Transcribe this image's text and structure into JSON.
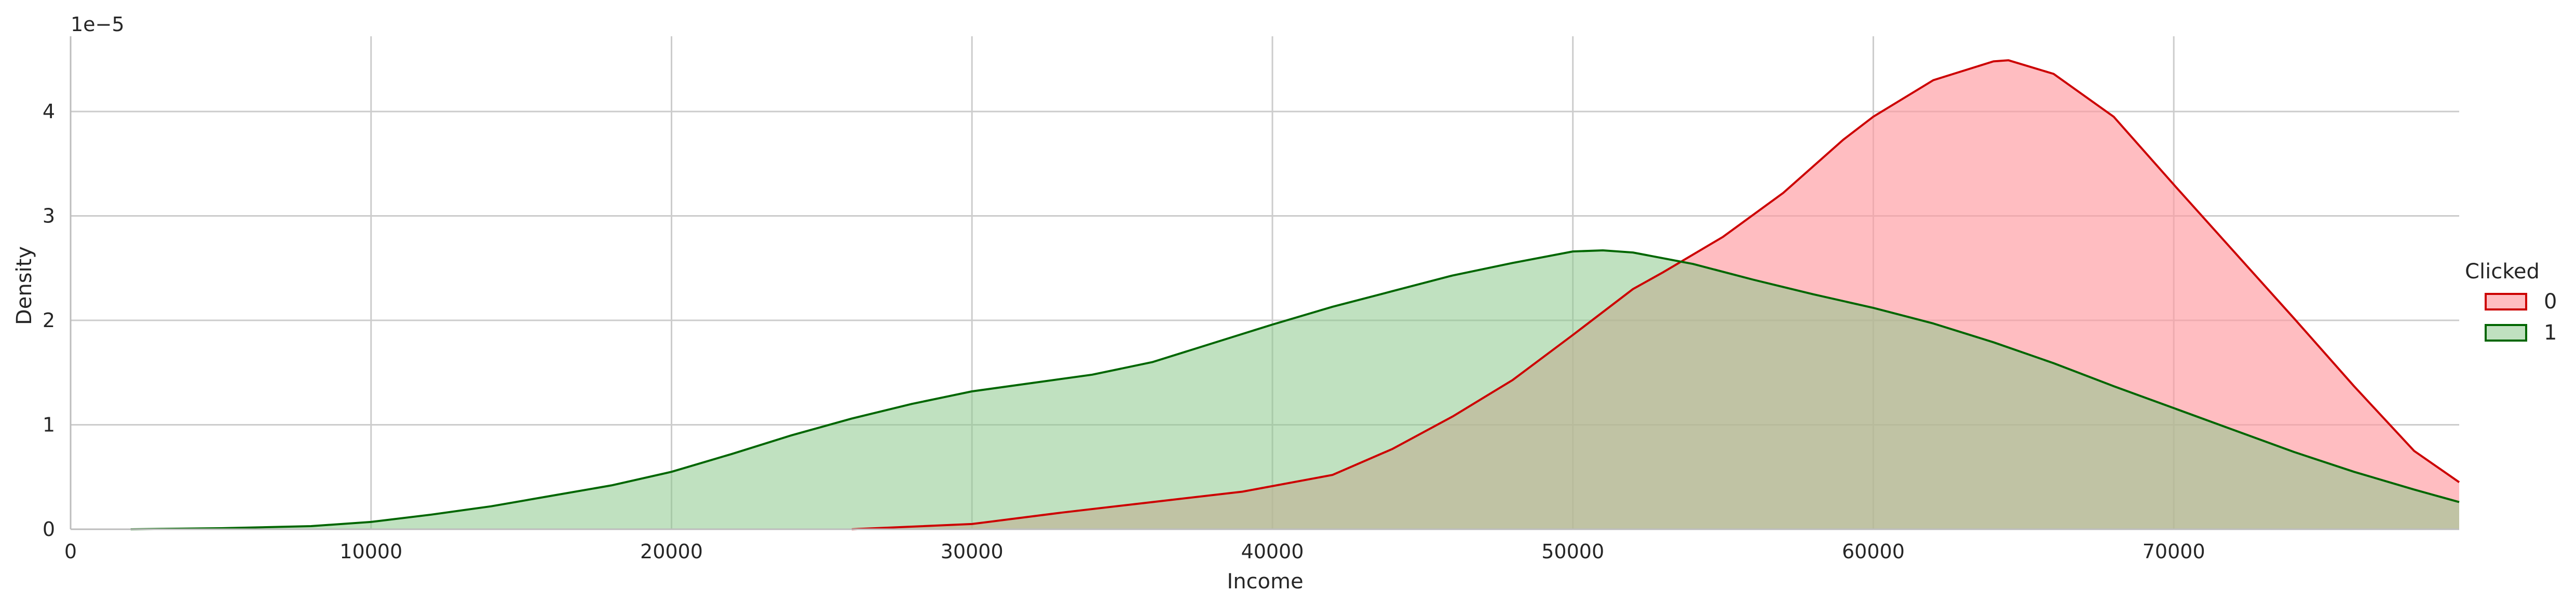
{
  "chart_data": {
    "type": "area",
    "xlabel": "Income",
    "ylabel": "Density",
    "y_scale_label": "1e−5",
    "x_ticks": [
      0,
      10000,
      20000,
      30000,
      40000,
      50000,
      60000,
      70000
    ],
    "x_tick_labels": [
      "0",
      "10000",
      "20000",
      "30000",
      "40000",
      "50000",
      "60000",
      "70000"
    ],
    "y_ticks": [
      0,
      1,
      2,
      3,
      4
    ],
    "y_tick_labels": [
      "0",
      "1",
      "2",
      "3",
      "4"
    ],
    "xlim": [
      0,
      79500
    ],
    "ylim": [
      0,
      4.72
    ],
    "grid": true,
    "legend": {
      "title": "Clicked",
      "placement": "right"
    },
    "series": [
      {
        "name": "0",
        "line_color": "#cc0000",
        "fill_color": "#ff9a9f",
        "fill_opacity": 0.65,
        "points": [
          [
            26000,
            0
          ],
          [
            30000,
            0.05
          ],
          [
            33000,
            0.16
          ],
          [
            36000,
            0.26
          ],
          [
            39000,
            0.36
          ],
          [
            42000,
            0.52
          ],
          [
            44000,
            0.77
          ],
          [
            46000,
            1.08
          ],
          [
            48000,
            1.43
          ],
          [
            50000,
            1.86
          ],
          [
            52000,
            2.3
          ],
          [
            53000,
            2.46
          ],
          [
            55000,
            2.8
          ],
          [
            57000,
            3.22
          ],
          [
            59000,
            3.73
          ],
          [
            60000,
            3.95
          ],
          [
            62000,
            4.3
          ],
          [
            64000,
            4.48
          ],
          [
            64500,
            4.49
          ],
          [
            66000,
            4.36
          ],
          [
            68000,
            3.95
          ],
          [
            70000,
            3.3
          ],
          [
            72000,
            2.66
          ],
          [
            74000,
            2.02
          ],
          [
            76000,
            1.37
          ],
          [
            78000,
            0.75
          ],
          [
            79500,
            0.45
          ]
        ]
      },
      {
        "name": "1",
        "line_color": "#006600",
        "fill_color": "#8cc98c",
        "fill_opacity": 0.55,
        "points": [
          [
            2000,
            0
          ],
          [
            5000,
            0.01
          ],
          [
            8000,
            0.03
          ],
          [
            10000,
            0.07
          ],
          [
            12000,
            0.14
          ],
          [
            14000,
            0.22
          ],
          [
            16000,
            0.32
          ],
          [
            18000,
            0.42
          ],
          [
            20000,
            0.55
          ],
          [
            22000,
            0.72
          ],
          [
            24000,
            0.9
          ],
          [
            26000,
            1.06
          ],
          [
            28000,
            1.2
          ],
          [
            30000,
            1.32
          ],
          [
            32000,
            1.4
          ],
          [
            34000,
            1.48
          ],
          [
            36000,
            1.6
          ],
          [
            38000,
            1.78
          ],
          [
            40000,
            1.96
          ],
          [
            42000,
            2.13
          ],
          [
            44000,
            2.28
          ],
          [
            46000,
            2.43
          ],
          [
            48000,
            2.55
          ],
          [
            50000,
            2.66
          ],
          [
            51000,
            2.67
          ],
          [
            52000,
            2.65
          ],
          [
            54000,
            2.54
          ],
          [
            56000,
            2.39
          ],
          [
            58000,
            2.25
          ],
          [
            60000,
            2.12
          ],
          [
            62000,
            1.97
          ],
          [
            64000,
            1.79
          ],
          [
            66000,
            1.59
          ],
          [
            68000,
            1.37
          ],
          [
            70000,
            1.16
          ],
          [
            72000,
            0.95
          ],
          [
            74000,
            0.74
          ],
          [
            76000,
            0.55
          ],
          [
            78000,
            0.38
          ],
          [
            79500,
            0.26
          ]
        ]
      }
    ]
  }
}
